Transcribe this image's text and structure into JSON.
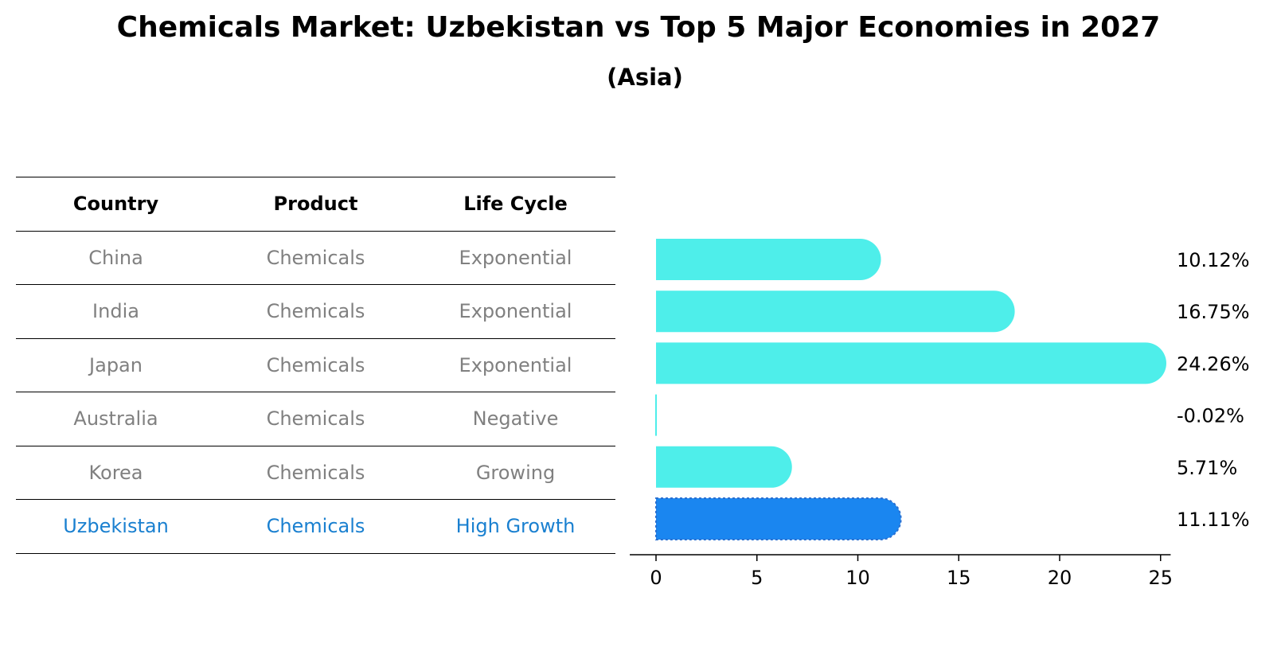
{
  "title": "Chemicals Market: Uzbekistan vs Top 5 Major Economies in 2027",
  "subtitle": "(Asia)",
  "table": {
    "headers": [
      "Country",
      "Product",
      "Life Cycle"
    ],
    "rows": [
      {
        "country": "China",
        "product": "Chemicals",
        "life_cycle": "Exponential"
      },
      {
        "country": "India",
        "product": "Chemicals",
        "life_cycle": "Exponential"
      },
      {
        "country": "Japan",
        "product": "Chemicals",
        "life_cycle": "Exponential"
      },
      {
        "country": "Australia",
        "product": "Chemicals",
        "life_cycle": "Negative"
      },
      {
        "country": "Korea",
        "product": "Chemicals",
        "life_cycle": "Growing"
      },
      {
        "country": "Uzbekistan",
        "product": "Chemicals",
        "life_cycle": "High Growth"
      }
    ]
  },
  "colors": {
    "bar": "#4eeeea",
    "highlight_bar": "#1a86f0",
    "muted_text": "#808080",
    "highlight_text": "#1a80d0"
  },
  "chart_data": {
    "type": "bar",
    "orientation": "horizontal",
    "categories": [
      "China",
      "India",
      "Japan",
      "Australia",
      "Korea",
      "Uzbekistan"
    ],
    "values": [
      10.12,
      16.75,
      24.26,
      -0.02,
      5.71,
      11.11
    ],
    "value_labels": [
      "10.12%",
      "16.75%",
      "24.26%",
      "-0.02%",
      "5.71%",
      "11.11%"
    ],
    "highlight": "Uzbekistan",
    "xlim": [
      -1.3,
      25.5
    ],
    "xticks": [
      0,
      5,
      10,
      15,
      20,
      25
    ],
    "title": "",
    "xlabel": "",
    "ylabel": ""
  }
}
